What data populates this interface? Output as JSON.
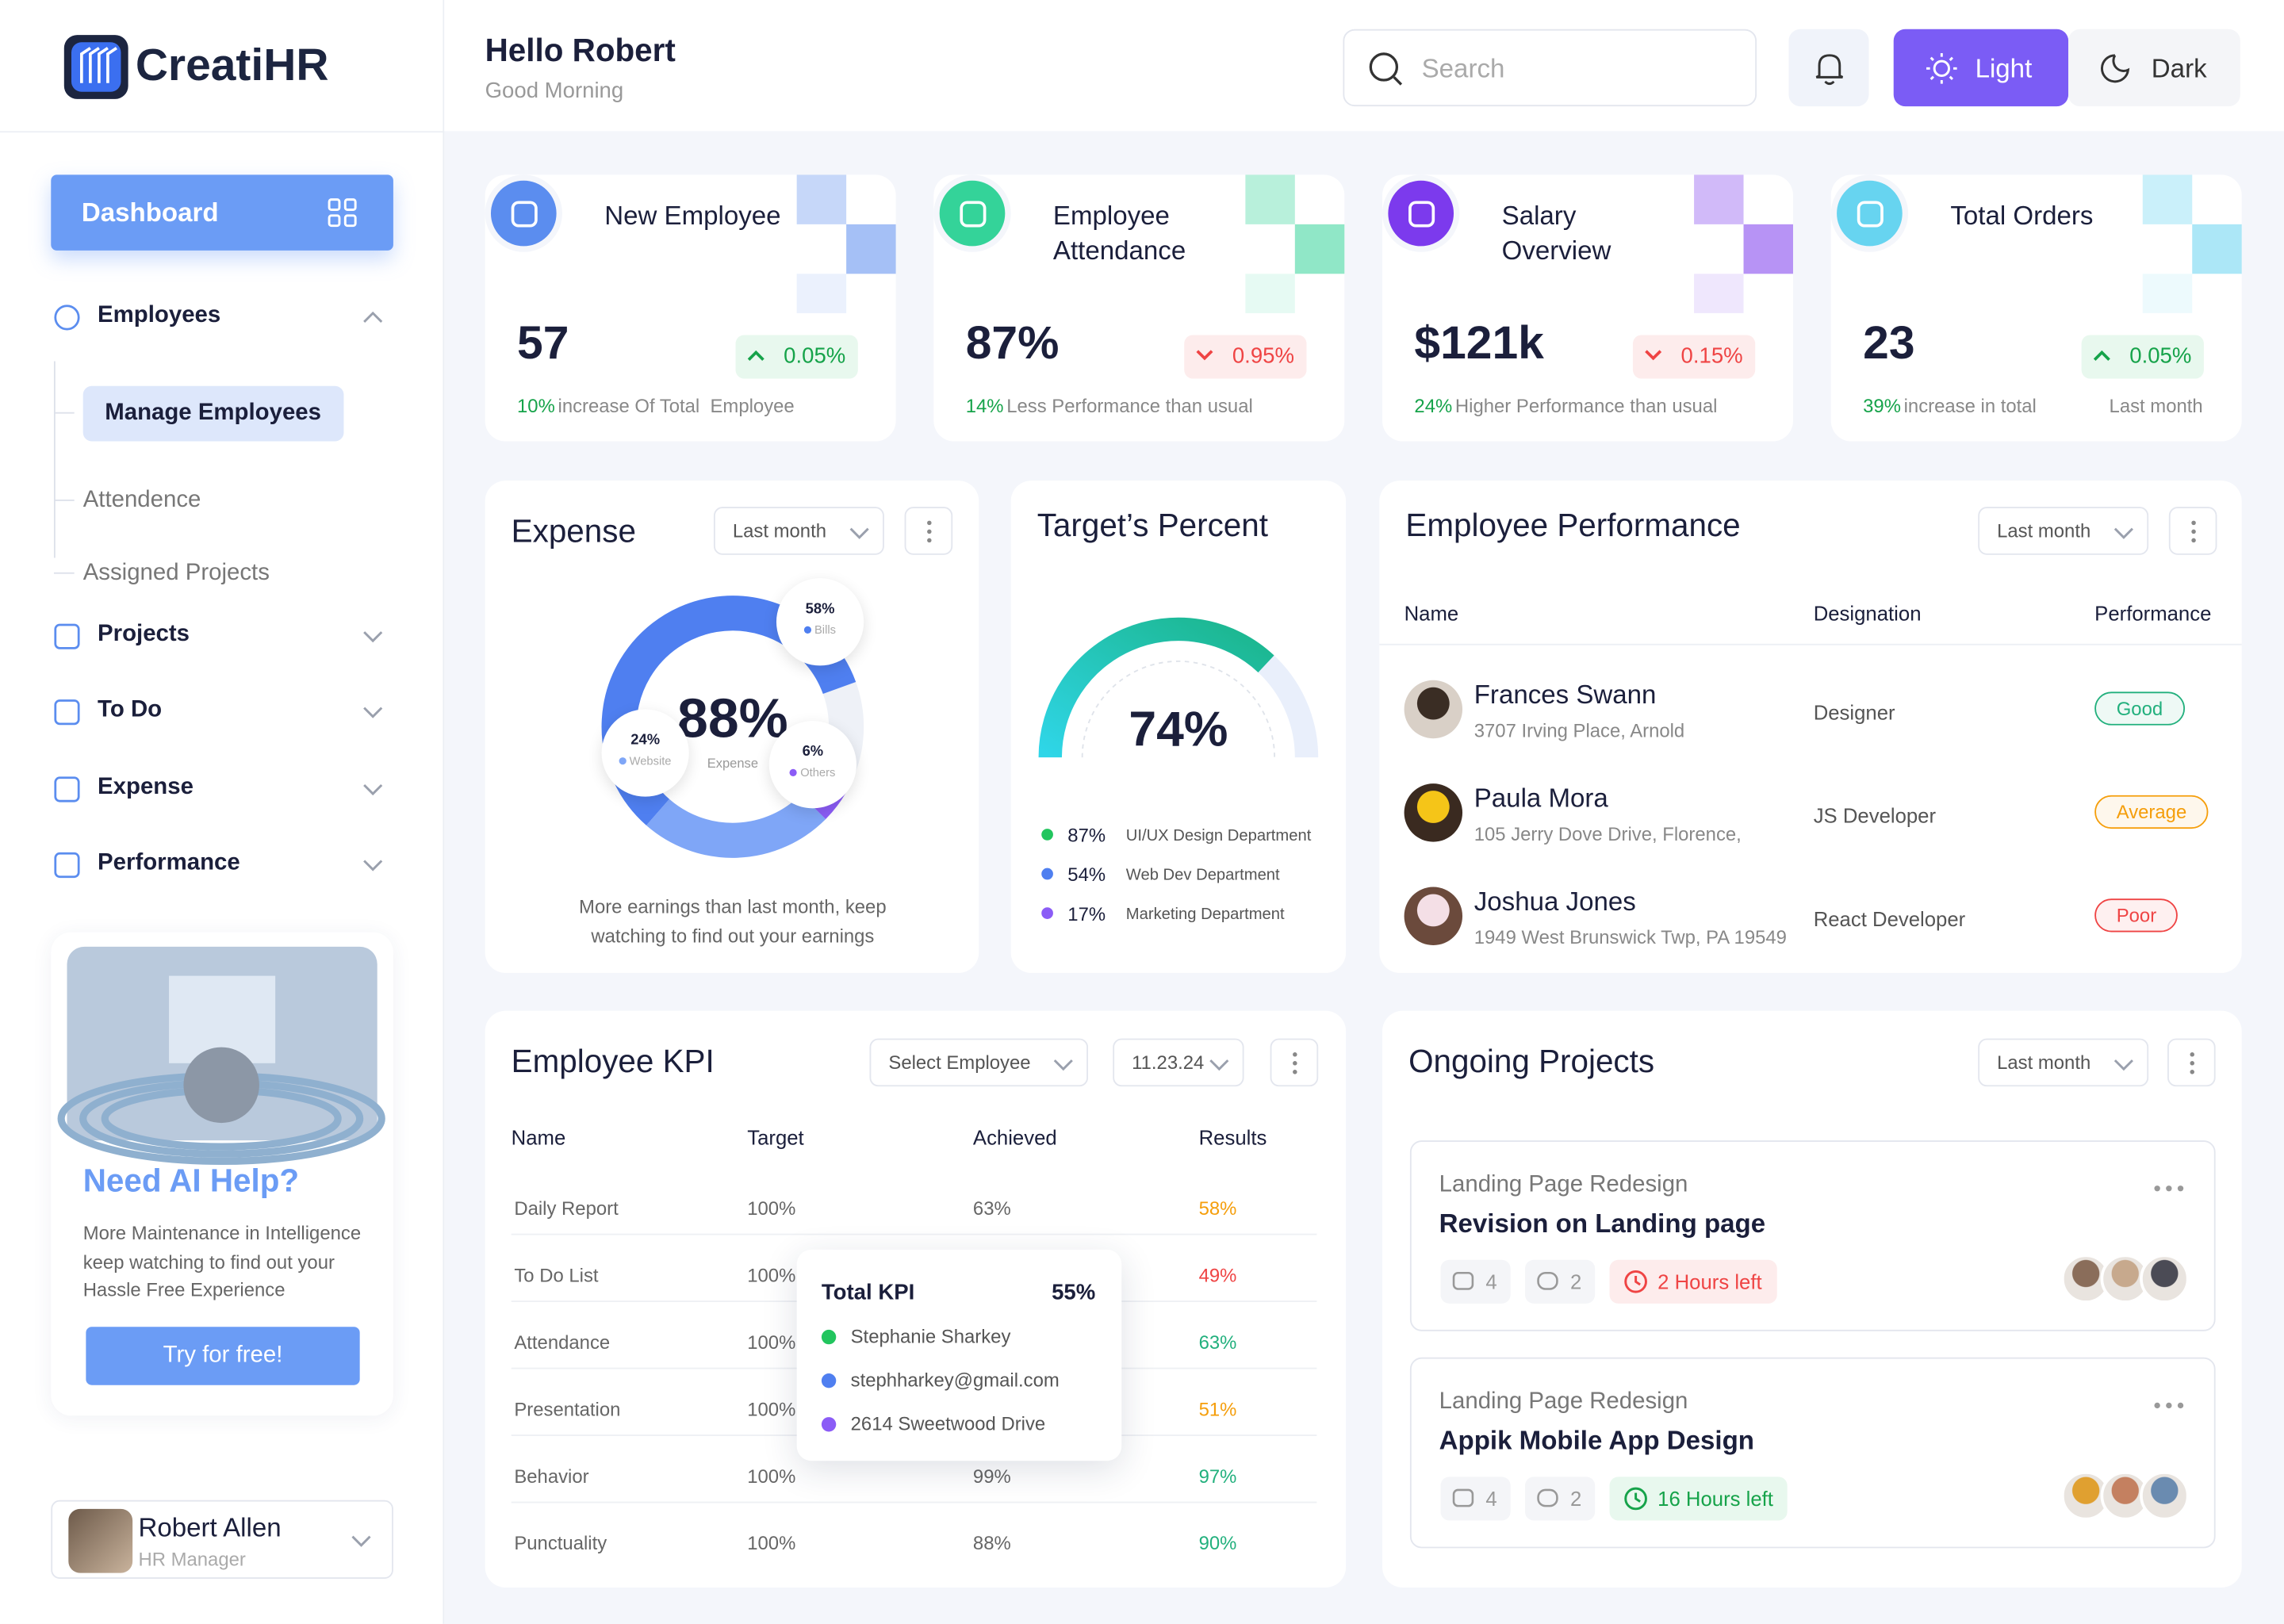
{
  "sidebar": {
    "brand": "CreatiHR",
    "dashboard": "Dashboard",
    "nav": [
      {
        "label": "Employees",
        "sub": [
          "Manage Employees",
          "Attendence",
          "Assigned Projects"
        ]
      },
      {
        "label": "Projects"
      },
      {
        "label": "To Do"
      },
      {
        "label": "Expense"
      },
      {
        "label": "Performance"
      }
    ],
    "ai": {
      "title": "Need AI Help?",
      "text": "More Maintenance in Intelligence keep watching to find out your Hassle Free Experience",
      "button": "Try for free!"
    },
    "user": {
      "name": "Robert Allen",
      "role": "HR Manager"
    }
  },
  "header": {
    "greeting": "Hello Robert",
    "subtitle": "Good Morning",
    "search": "Search",
    "light": "Light",
    "dark": "Dark"
  },
  "stats": [
    {
      "title": "New Employee",
      "value": "57",
      "change": "0.05%",
      "trend": "up",
      "highlight": "10%",
      "note": "increase Of Total  Employee",
      "color": "#5b8def"
    },
    {
      "title": "Employee Attendance",
      "value": "87%",
      "change": "0.95%",
      "trend": "down",
      "highlight": "14%",
      "note": "Less Performance than usual",
      "color": "#34d399"
    },
    {
      "title": "Salary Overview",
      "value": "$121k",
      "change": "0.15%",
      "trend": "down",
      "highlight": "24%",
      "note": "Higher Performance than usual",
      "color": "#7c3aed"
    },
    {
      "title": "Total Orders",
      "value": "23",
      "change": "0.05%",
      "trend": "up",
      "highlight": "39%",
      "note": "increase in total",
      "extra": "Last month",
      "color": "#67d4f0"
    }
  ],
  "expense": {
    "title": "Expense",
    "filter": "Last month",
    "total": "88%",
    "total_label": "Expense",
    "segments": [
      {
        "name": "Bills",
        "value": 58,
        "label": "58%",
        "color": "#4f7ff0"
      },
      {
        "name": "Website",
        "value": 24,
        "label": "24%",
        "color": "#7fa6f7"
      },
      {
        "name": "Others",
        "value": 6,
        "label": "6%",
        "color": "#8b5cf6"
      }
    ],
    "note": "More earnings than last month, keep watching to find out your earnings"
  },
  "target": {
    "title": "Target’s Percent",
    "value": 74,
    "label": "74%",
    "items": [
      {
        "value": "87%",
        "name": "UI/UX Design Department",
        "color": "#22c55e"
      },
      {
        "value": "54%",
        "name": "Web Dev Department",
        "color": "#4f7ff0"
      },
      {
        "value": "17%",
        "name": "Marketing Department",
        "color": "#8b5cf6"
      }
    ]
  },
  "performance": {
    "title": "Employee Performance",
    "filter": "Last month",
    "columns": [
      "Name",
      "Designation",
      "Performance"
    ],
    "rows": [
      {
        "name": "Frances Swann",
        "address": "3707 Irving Place, Arnold",
        "designation": "Designer",
        "status": "Good",
        "color": "#22b07d"
      },
      {
        "name": "Paula Mora",
        "address": "105 Jerry Dove Drive, Florence,",
        "designation": "JS Developer",
        "status": "Average",
        "color": "#f59e0b"
      },
      {
        "name": "Joshua Jones",
        "address": "1949 West Brunswick Twp, PA 19549",
        "designation": "React Developer",
        "status": "Poor",
        "color": "#ef4444"
      }
    ]
  },
  "kpi": {
    "title": "Employee KPI",
    "select": "Select Employee",
    "date": "11.23.24",
    "columns": [
      "Name",
      "Target",
      "Achieved",
      "Results"
    ],
    "rows": [
      [
        "Daily Report",
        "100%",
        "63%",
        "58%"
      ],
      [
        "To Do List",
        "100%",
        null,
        "49%"
      ],
      [
        "Attendance",
        "100%",
        null,
        "63%"
      ],
      [
        "Presentation",
        "100%",
        null,
        "51%"
      ],
      [
        "Behavior",
        "100%",
        "99%",
        "97%"
      ],
      [
        "Punctuality",
        "100%",
        "88%",
        "90%"
      ]
    ],
    "result_colors": [
      "#f59e0b",
      "#ef4444",
      "#22b07d",
      "#f59e0b",
      "#22b07d",
      "#22b07d"
    ],
    "popup": {
      "title": "Total KPI",
      "value": "55%",
      "items": [
        "Stephanie Sharkey",
        "stephharkey@gmail.com",
        "2614 Sweetwood Drive"
      ]
    }
  },
  "projects": {
    "title": "Ongoing Projects",
    "filter": "Last month",
    "items": [
      {
        "category": "Landing Page Redesign",
        "name": "Revision on Landing page",
        "comments": "4",
        "links": "2",
        "deadline": "2 Hours left",
        "urgent": true
      },
      {
        "category": "Landing Page Redesign",
        "name": "Appik Mobile App Design",
        "comments": "4",
        "links": "2",
        "deadline": "16 Hours left",
        "urgent": false
      }
    ]
  }
}
